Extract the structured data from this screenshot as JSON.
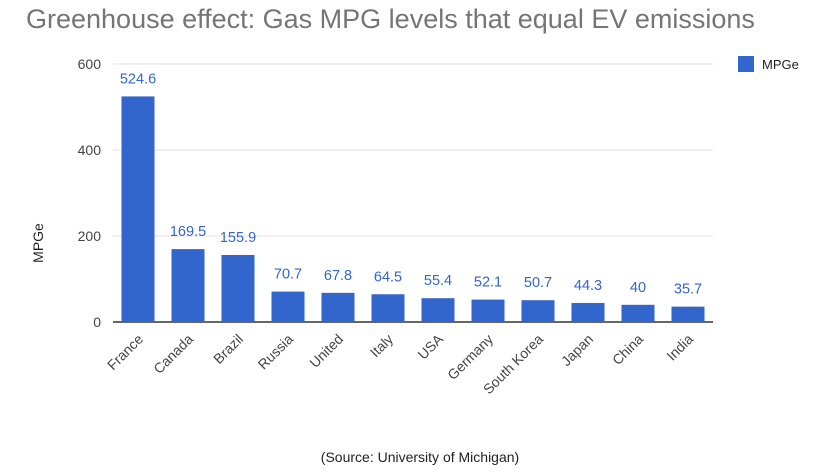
{
  "title": "Greenhouse effect: Gas MPG levels that equal EV emissions",
  "source": "(Source: University of Michigan)",
  "legend": {
    "label": "MPGe"
  },
  "colors": {
    "bar": "#3366cc",
    "grid": "#e0e0e0",
    "axis": "#333333"
  },
  "chart_data": {
    "type": "bar",
    "title": "Greenhouse effect: Gas MPG levels that equal EV emissions",
    "categories": [
      "France",
      "Canada",
      "Brazil",
      "Russia",
      "United",
      "Italy",
      "USA",
      "Germany",
      "South Korea",
      "Japan",
      "China",
      "India"
    ],
    "series": [
      {
        "name": "MPGe",
        "values": [
          524.6,
          169.5,
          155.9,
          70.7,
          67.8,
          64.5,
          55.4,
          52.1,
          50.7,
          44.3,
          40,
          35.7
        ]
      }
    ],
    "data_labels": [
      "524.6",
      "169.5",
      "155.9",
      "70.7",
      "67.8",
      "64.5",
      "55.4",
      "52.1",
      "50.7",
      "44.3",
      "40",
      "35.7"
    ],
    "xlabel": "",
    "ylabel": "MPGe",
    "ylim": [
      0,
      600
    ],
    "yticks": [
      0,
      200,
      400,
      600
    ],
    "grid": true,
    "legend_position": "top-right"
  }
}
